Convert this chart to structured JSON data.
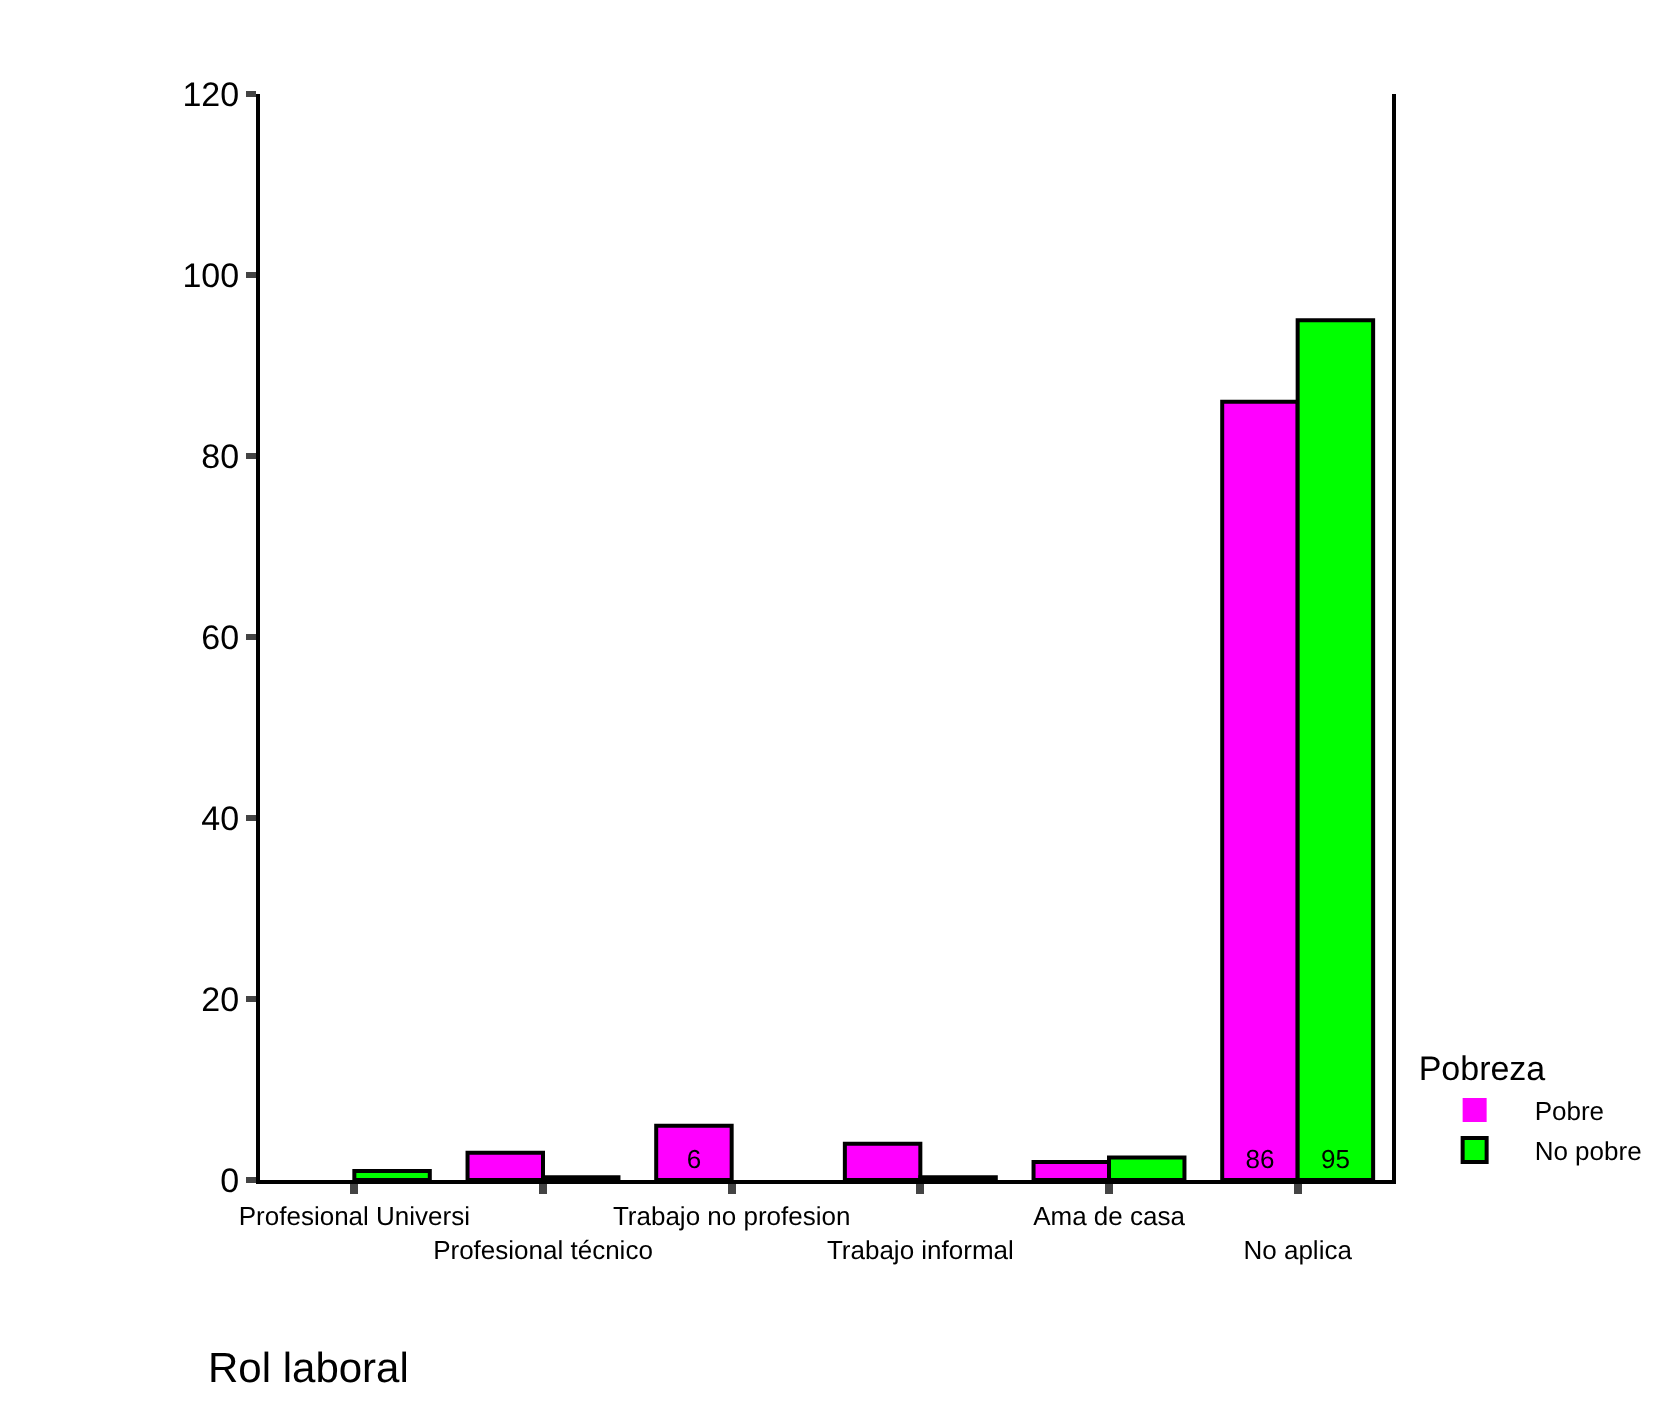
{
  "chart_data": {
    "type": "bar",
    "xlabel": "Rol laboral",
    "legend_title": "Pobreza",
    "categories": [
      "Profesional Universi",
      "Profesional técnico",
      "Trabajo no profesion",
      "Trabajo informal",
      "Ama de casa",
      "No aplica"
    ],
    "series": [
      {
        "name": "Pobre",
        "color": "#ff00ff",
        "values": [
          0,
          3,
          6,
          4,
          2,
          86
        ],
        "value_labels": [
          null,
          null,
          "6",
          null,
          null,
          "86"
        ]
      },
      {
        "name": "No pobre",
        "color": "#00ff00",
        "values": [
          1,
          0.3,
          0,
          0.3,
          2.5,
          95
        ],
        "value_labels": [
          null,
          null,
          null,
          null,
          null,
          "95"
        ]
      }
    ],
    "ylim": [
      0,
      120
    ],
    "yticks": [
      0,
      20,
      40,
      60,
      80,
      100,
      120
    ],
    "grid": false,
    "legend": "right"
  }
}
